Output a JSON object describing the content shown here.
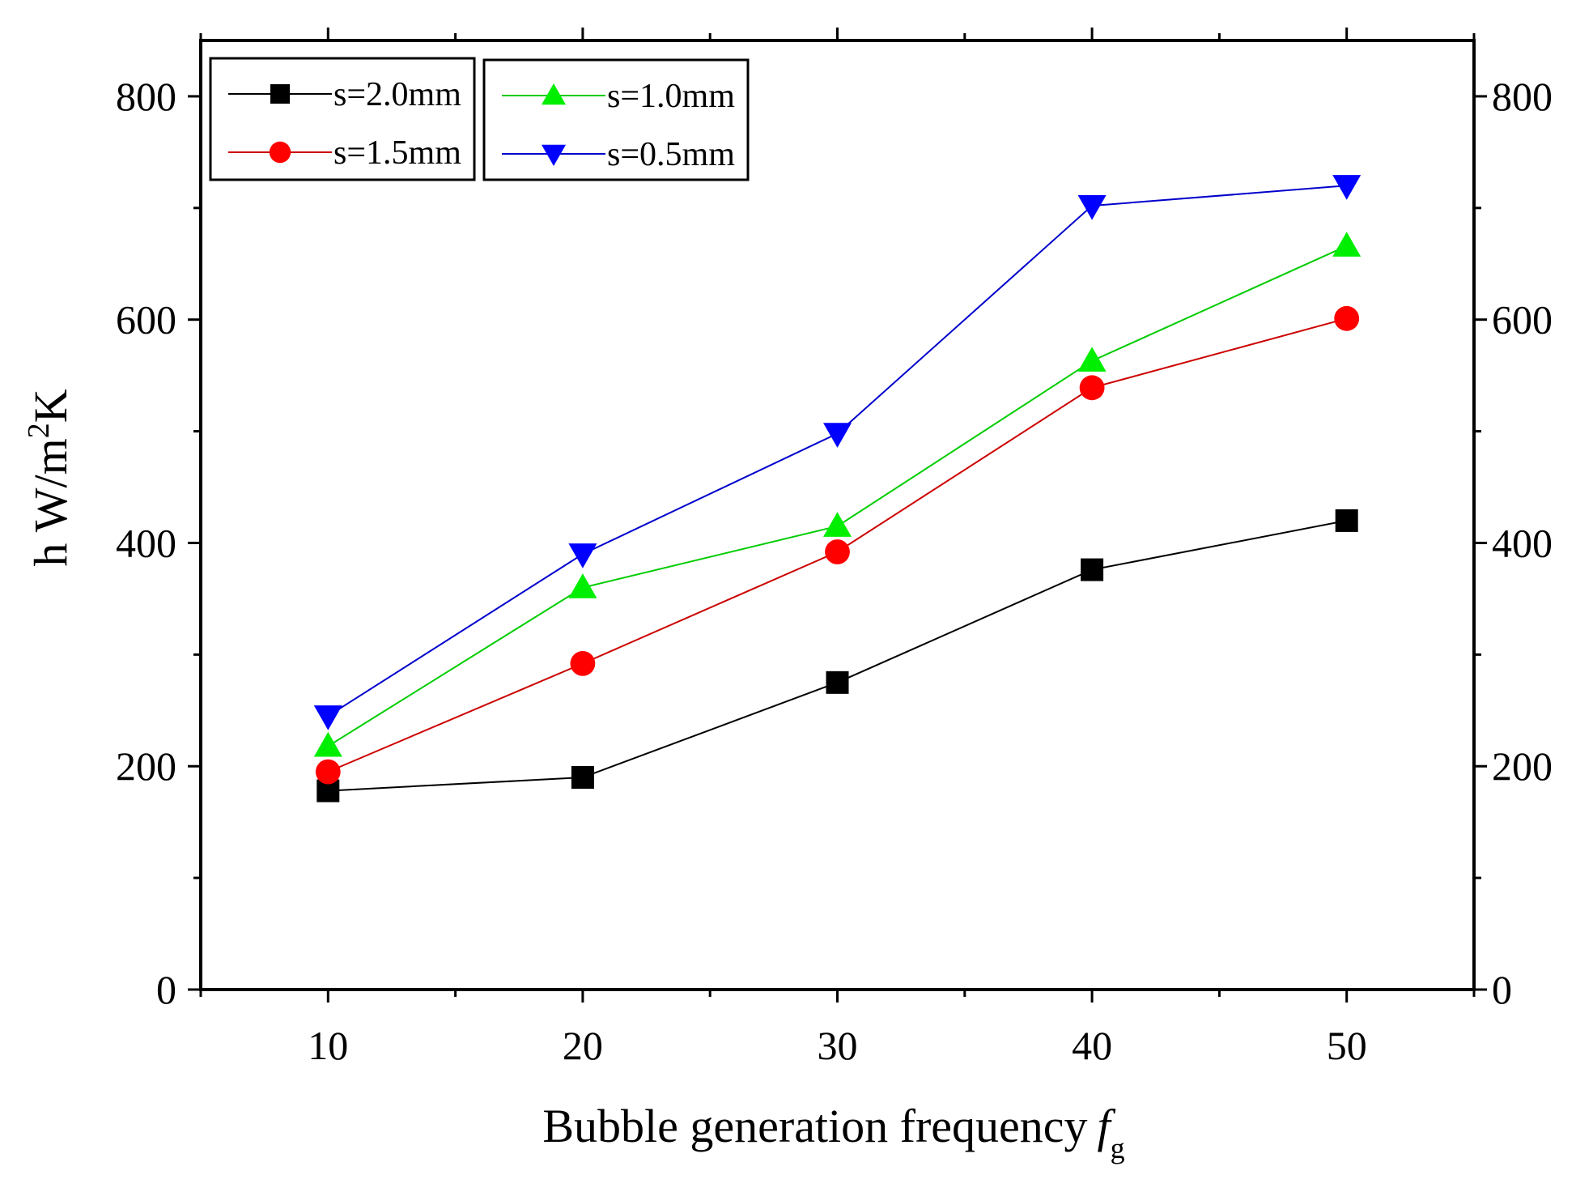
{
  "chart_data": {
    "type": "line",
    "title": "",
    "xlabel": "Bubble generation frequency",
    "xlabel_symbol": "f",
    "xlabel_subscript": "g",
    "ylabel_prefix": "h  W/m",
    "ylabel_superscript": "2",
    "ylabel_suffix": "K",
    "xlim": [
      5,
      55
    ],
    "ylim": [
      0,
      850
    ],
    "x_ticks": [
      10,
      20,
      30,
      40,
      50
    ],
    "x_tick_labels": [
      "10",
      "20",
      "30",
      "40",
      "50"
    ],
    "y_ticks": [
      0,
      200,
      400,
      600,
      800
    ],
    "y_tick_labels": [
      "0",
      "200",
      "400",
      "600",
      "800"
    ],
    "y_right_tick_labels": [
      "0",
      "200",
      "400",
      "600",
      "800"
    ],
    "grid": false,
    "legend_position": "top-left",
    "x": [
      10,
      20,
      30,
      40,
      50
    ],
    "series": [
      {
        "name": "s=2.0mm",
        "marker": "square",
        "color": "#000000",
        "line_color": "#000000",
        "values": [
          178,
          190,
          275,
          376,
          420
        ]
      },
      {
        "name": "s=1.5mm",
        "marker": "circle",
        "color": "#ff0000",
        "line_color": "#cc0000",
        "values": [
          195,
          292,
          392,
          539,
          601
        ]
      },
      {
        "name": "s=1.0mm",
        "marker": "triangle-up",
        "color": "#00ee00",
        "line_color": "#00cc00",
        "values": [
          218,
          360,
          415,
          563,
          666
        ]
      },
      {
        "name": "s=0.5mm",
        "marker": "triangle-down",
        "color": "#0000ff",
        "line_color": "#0000cc",
        "values": [
          245,
          390,
          498,
          702,
          720
        ]
      }
    ]
  }
}
